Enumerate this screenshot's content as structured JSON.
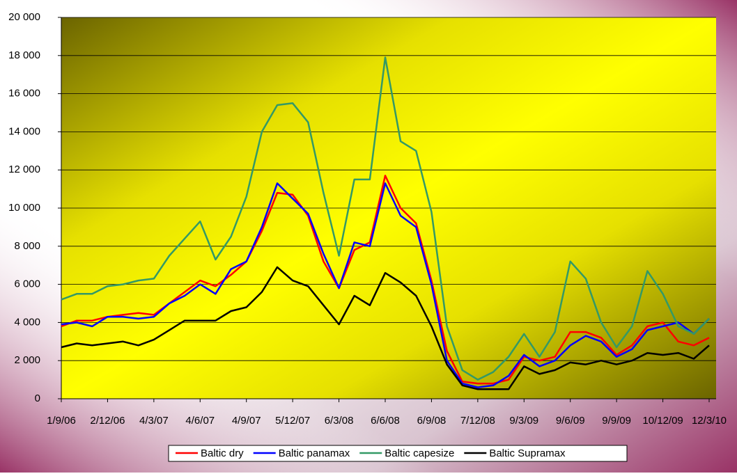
{
  "chart_data": {
    "type": "line",
    "categories": [
      "1/9/06",
      null,
      null,
      "2/12/06",
      null,
      null,
      "4/3/07",
      null,
      null,
      "4/6/07",
      null,
      null,
      "4/9/07",
      null,
      null,
      "5/12/07",
      null,
      null,
      "6/3/08",
      null,
      null,
      "6/6/08",
      null,
      null,
      "6/9/08",
      null,
      null,
      "7/12/08",
      null,
      null,
      "9/3/09",
      null,
      null,
      "9/6/09",
      null,
      null,
      "9/9/09",
      null,
      null,
      "10/12/09",
      null,
      null,
      "12/3/10"
    ],
    "series": [
      {
        "name": "Baltic dry",
        "color": "#ff0000",
        "values": [
          3800,
          4100,
          4100,
          4300,
          4400,
          4500,
          4400,
          5000,
          5600,
          6200,
          5900,
          6500,
          7200,
          8800,
          10800,
          10700,
          9600,
          7200,
          5800,
          7800,
          8200,
          11700,
          10000,
          9200,
          6200,
          2500,
          900,
          800,
          800,
          1000,
          2200,
          2000,
          2200,
          3500,
          3500,
          3200,
          2300,
          2800,
          3800,
          4000,
          3000,
          2800,
          3200
        ]
      },
      {
        "name": "Baltic panamax",
        "color": "#0000ff",
        "values": [
          3900,
          4000,
          3800,
          4300,
          4300,
          4200,
          4300,
          5000,
          5400,
          6000,
          5500,
          6800,
          7200,
          9000,
          11300,
          10500,
          9700,
          7600,
          5800,
          8200,
          8000,
          11300,
          9600,
          9000,
          6000,
          2000,
          800,
          600,
          700,
          1200,
          2300,
          1700,
          2000,
          2800,
          3300,
          3000,
          2200,
          2600,
          3600,
          3800,
          4000,
          3400,
          4200
        ]
      },
      {
        "name": "Baltic capesize",
        "color": "#339966",
        "values": [
          5200,
          5500,
          5500,
          5900,
          6000,
          6200,
          6300,
          7500,
          8400,
          9300,
          7300,
          8500,
          10600,
          14000,
          15400,
          15500,
          14500,
          10800,
          7500,
          11500,
          11500,
          17900,
          13500,
          13000,
          9800,
          3800,
          1500,
          1000,
          1400,
          2200,
          3400,
          2200,
          3500,
          7200,
          6300,
          4000,
          2700,
          3800,
          6700,
          5500,
          3800,
          3400,
          4200
        ]
      },
      {
        "name": "Baltic Supramax",
        "color": "#000000",
        "values": [
          2700,
          2900,
          2800,
          2900,
          3000,
          2800,
          3100,
          3600,
          4100,
          4100,
          4100,
          4600,
          4800,
          5600,
          6900,
          6200,
          5900,
          4900,
          3900,
          5400,
          4900,
          6600,
          6100,
          5400,
          3800,
          1800,
          700,
          500,
          500,
          500,
          1700,
          1300,
          1500,
          1900,
          1800,
          2000,
          1800,
          2000,
          2400,
          2300,
          2400,
          2100,
          2800
        ]
      }
    ],
    "ylim": [
      0,
      20000
    ],
    "yticks": [
      0,
      {
        "value": 2000,
        "label": "2 000"
      },
      {
        "value": 4000,
        "label": "4 000"
      },
      {
        "value": 6000,
        "label": "6 000"
      },
      {
        "value": 8000,
        "label": "8 000"
      },
      {
        "value": 10000,
        "label": "10 000"
      },
      {
        "value": 12000,
        "label": "12 000"
      },
      {
        "value": 14000,
        "label": "14 000"
      },
      {
        "value": 16000,
        "label": "16 000"
      },
      {
        "value": 18000,
        "label": "18 000"
      },
      {
        "value": 20000,
        "label": "20 000"
      }
    ],
    "grid": true
  }
}
